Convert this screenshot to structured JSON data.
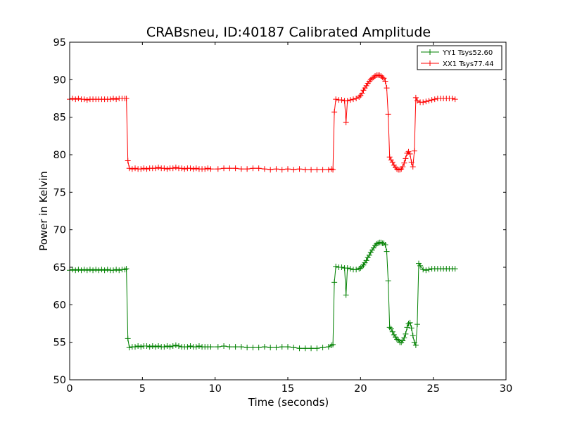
{
  "chart_data": {
    "type": "line",
    "title": "CRABsneu, ID:40187 Calibrated Amplitude",
    "xlabel": "Time (seconds)",
    "ylabel": "Power in Kelvin",
    "xlim": [
      0,
      30
    ],
    "ylim": [
      50,
      95
    ],
    "xticks": [
      0,
      5,
      10,
      15,
      20,
      25,
      30
    ],
    "yticks": [
      50,
      55,
      60,
      65,
      70,
      75,
      80,
      85,
      90,
      95
    ],
    "grid": false,
    "legend_position": "top-right",
    "marker": "plus",
    "series": [
      {
        "name": "YY1 Tsys52.60",
        "color": "#008000",
        "points": [
          [
            0.0,
            64.6
          ],
          [
            0.2,
            64.7
          ],
          [
            0.4,
            64.6
          ],
          [
            0.6,
            64.7
          ],
          [
            0.8,
            64.6
          ],
          [
            1.0,
            64.7
          ],
          [
            1.2,
            64.6
          ],
          [
            1.4,
            64.7
          ],
          [
            1.6,
            64.6
          ],
          [
            1.8,
            64.7
          ],
          [
            2.0,
            64.6
          ],
          [
            2.2,
            64.7
          ],
          [
            2.4,
            64.6
          ],
          [
            2.6,
            64.7
          ],
          [
            2.8,
            64.6
          ],
          [
            3.0,
            64.6
          ],
          [
            3.2,
            64.7
          ],
          [
            3.4,
            64.6
          ],
          [
            3.6,
            64.7
          ],
          [
            3.8,
            64.7
          ],
          [
            3.9,
            64.8
          ],
          [
            4.0,
            55.5
          ],
          [
            4.1,
            54.3
          ],
          [
            4.3,
            54.4
          ],
          [
            4.5,
            54.4
          ],
          [
            4.7,
            54.5
          ],
          [
            4.9,
            54.4
          ],
          [
            5.1,
            54.5
          ],
          [
            5.3,
            54.5
          ],
          [
            5.5,
            54.4
          ],
          [
            5.7,
            54.5
          ],
          [
            5.9,
            54.4
          ],
          [
            6.1,
            54.5
          ],
          [
            6.3,
            54.4
          ],
          [
            6.5,
            54.4
          ],
          [
            6.7,
            54.5
          ],
          [
            6.9,
            54.4
          ],
          [
            7.1,
            54.5
          ],
          [
            7.3,
            54.6
          ],
          [
            7.5,
            54.5
          ],
          [
            7.7,
            54.4
          ],
          [
            7.9,
            54.4
          ],
          [
            8.1,
            54.4
          ],
          [
            8.3,
            54.5
          ],
          [
            8.5,
            54.4
          ],
          [
            8.7,
            54.4
          ],
          [
            8.9,
            54.5
          ],
          [
            9.1,
            54.4
          ],
          [
            9.3,
            54.4
          ],
          [
            9.5,
            54.4
          ],
          [
            9.7,
            54.4
          ],
          [
            10.2,
            54.4
          ],
          [
            10.6,
            54.5
          ],
          [
            11.0,
            54.4
          ],
          [
            11.4,
            54.4
          ],
          [
            11.8,
            54.4
          ],
          [
            12.2,
            54.3
          ],
          [
            12.6,
            54.3
          ],
          [
            13.0,
            54.3
          ],
          [
            13.4,
            54.4
          ],
          [
            13.8,
            54.3
          ],
          [
            14.2,
            54.3
          ],
          [
            14.6,
            54.4
          ],
          [
            15.0,
            54.4
          ],
          [
            15.4,
            54.3
          ],
          [
            15.8,
            54.2
          ],
          [
            16.2,
            54.2
          ],
          [
            16.6,
            54.2
          ],
          [
            17.0,
            54.2
          ],
          [
            17.4,
            54.3
          ],
          [
            17.8,
            54.4
          ],
          [
            18.0,
            54.6
          ],
          [
            18.1,
            54.7
          ],
          [
            18.2,
            63.0
          ],
          [
            18.3,
            65.1
          ],
          [
            18.5,
            65.0
          ],
          [
            18.7,
            65.0
          ],
          [
            18.9,
            64.9
          ],
          [
            19.0,
            61.3
          ],
          [
            19.1,
            64.9
          ],
          [
            19.3,
            64.8
          ],
          [
            19.5,
            64.7
          ],
          [
            19.7,
            64.7
          ],
          [
            19.9,
            64.8
          ],
          [
            20.0,
            64.9
          ],
          [
            20.1,
            65.1
          ],
          [
            20.2,
            65.3
          ],
          [
            20.3,
            65.6
          ],
          [
            20.4,
            65.9
          ],
          [
            20.5,
            66.3
          ],
          [
            20.6,
            66.6
          ],
          [
            20.7,
            67.0
          ],
          [
            20.8,
            67.3
          ],
          [
            20.9,
            67.6
          ],
          [
            21.0,
            67.9
          ],
          [
            21.1,
            68.1
          ],
          [
            21.2,
            68.2
          ],
          [
            21.3,
            68.3
          ],
          [
            21.4,
            68.3
          ],
          [
            21.5,
            68.2
          ],
          [
            21.6,
            68.2
          ],
          [
            21.7,
            68.0
          ],
          [
            21.8,
            67.1
          ],
          [
            21.9,
            63.2
          ],
          [
            22.0,
            57.0
          ],
          [
            22.1,
            56.8
          ],
          [
            22.2,
            56.4
          ],
          [
            22.3,
            56.0
          ],
          [
            22.4,
            55.7
          ],
          [
            22.5,
            55.4
          ],
          [
            22.6,
            55.3
          ],
          [
            22.7,
            55.0
          ],
          [
            22.8,
            55.0
          ],
          [
            22.9,
            55.2
          ],
          [
            23.0,
            55.6
          ],
          [
            23.1,
            56.1
          ],
          [
            23.2,
            57.0
          ],
          [
            23.3,
            57.5
          ],
          [
            23.4,
            57.6
          ],
          [
            23.5,
            56.9
          ],
          [
            23.6,
            55.9
          ],
          [
            23.7,
            55.0
          ],
          [
            23.8,
            54.6
          ],
          [
            23.9,
            57.4
          ],
          [
            24.0,
            65.5
          ],
          [
            24.1,
            65.2
          ],
          [
            24.3,
            64.7
          ],
          [
            24.5,
            64.6
          ],
          [
            24.7,
            64.7
          ],
          [
            24.9,
            64.8
          ],
          [
            25.1,
            64.8
          ],
          [
            25.3,
            64.8
          ],
          [
            25.5,
            64.8
          ],
          [
            25.7,
            64.8
          ],
          [
            25.9,
            64.8
          ],
          [
            26.1,
            64.8
          ],
          [
            26.3,
            64.8
          ],
          [
            26.5,
            64.8
          ]
        ]
      },
      {
        "name": "XX1 Tsys77.44",
        "color": "#ff0000",
        "points": [
          [
            0.0,
            87.4
          ],
          [
            0.2,
            87.5
          ],
          [
            0.4,
            87.4
          ],
          [
            0.6,
            87.5
          ],
          [
            0.8,
            87.4
          ],
          [
            1.0,
            87.4
          ],
          [
            1.2,
            87.3
          ],
          [
            1.4,
            87.4
          ],
          [
            1.6,
            87.4
          ],
          [
            1.8,
            87.4
          ],
          [
            2.0,
            87.4
          ],
          [
            2.2,
            87.4
          ],
          [
            2.4,
            87.4
          ],
          [
            2.6,
            87.4
          ],
          [
            2.8,
            87.4
          ],
          [
            3.0,
            87.5
          ],
          [
            3.2,
            87.4
          ],
          [
            3.4,
            87.5
          ],
          [
            3.6,
            87.5
          ],
          [
            3.8,
            87.5
          ],
          [
            3.9,
            87.5
          ],
          [
            4.0,
            79.2
          ],
          [
            4.1,
            78.2
          ],
          [
            4.3,
            78.1
          ],
          [
            4.5,
            78.2
          ],
          [
            4.7,
            78.1
          ],
          [
            4.9,
            78.1
          ],
          [
            5.1,
            78.2
          ],
          [
            5.3,
            78.1
          ],
          [
            5.5,
            78.2
          ],
          [
            5.7,
            78.2
          ],
          [
            5.9,
            78.2
          ],
          [
            6.1,
            78.3
          ],
          [
            6.3,
            78.2
          ],
          [
            6.5,
            78.2
          ],
          [
            6.7,
            78.1
          ],
          [
            6.9,
            78.2
          ],
          [
            7.1,
            78.2
          ],
          [
            7.3,
            78.3
          ],
          [
            7.5,
            78.2
          ],
          [
            7.7,
            78.2
          ],
          [
            7.9,
            78.1
          ],
          [
            8.1,
            78.2
          ],
          [
            8.3,
            78.2
          ],
          [
            8.5,
            78.1
          ],
          [
            8.7,
            78.2
          ],
          [
            8.9,
            78.1
          ],
          [
            9.1,
            78.1
          ],
          [
            9.3,
            78.1
          ],
          [
            9.5,
            78.2
          ],
          [
            9.7,
            78.1
          ],
          [
            10.2,
            78.1
          ],
          [
            10.6,
            78.2
          ],
          [
            11.0,
            78.2
          ],
          [
            11.4,
            78.2
          ],
          [
            11.8,
            78.1
          ],
          [
            12.2,
            78.1
          ],
          [
            12.6,
            78.2
          ],
          [
            13.0,
            78.2
          ],
          [
            13.4,
            78.1
          ],
          [
            13.8,
            78.0
          ],
          [
            14.2,
            78.1
          ],
          [
            14.6,
            78.0
          ],
          [
            15.0,
            78.1
          ],
          [
            15.4,
            78.0
          ],
          [
            15.8,
            78.1
          ],
          [
            16.2,
            78.0
          ],
          [
            16.6,
            78.0
          ],
          [
            17.0,
            78.0
          ],
          [
            17.4,
            78.0
          ],
          [
            17.8,
            78.0
          ],
          [
            18.0,
            78.1
          ],
          [
            18.1,
            78.0
          ],
          [
            18.2,
            85.7
          ],
          [
            18.3,
            87.4
          ],
          [
            18.5,
            87.3
          ],
          [
            18.7,
            87.3
          ],
          [
            18.9,
            87.2
          ],
          [
            19.0,
            84.3
          ],
          [
            19.1,
            87.2
          ],
          [
            19.3,
            87.3
          ],
          [
            19.5,
            87.4
          ],
          [
            19.7,
            87.5
          ],
          [
            19.9,
            87.7
          ],
          [
            20.0,
            87.9
          ],
          [
            20.1,
            88.2
          ],
          [
            20.2,
            88.6
          ],
          [
            20.3,
            88.9
          ],
          [
            20.4,
            89.2
          ],
          [
            20.5,
            89.5
          ],
          [
            20.6,
            89.8
          ],
          [
            20.7,
            90.0
          ],
          [
            20.8,
            90.2
          ],
          [
            20.9,
            90.3
          ],
          [
            21.0,
            90.5
          ],
          [
            21.1,
            90.6
          ],
          [
            21.2,
            90.6
          ],
          [
            21.3,
            90.6
          ],
          [
            21.4,
            90.5
          ],
          [
            21.5,
            90.3
          ],
          [
            21.6,
            90.2
          ],
          [
            21.7,
            89.8
          ],
          [
            21.8,
            88.9
          ],
          [
            21.9,
            85.4
          ],
          [
            22.0,
            79.7
          ],
          [
            22.1,
            79.3
          ],
          [
            22.2,
            79.0
          ],
          [
            22.3,
            78.6
          ],
          [
            22.4,
            78.3
          ],
          [
            22.5,
            78.1
          ],
          [
            22.6,
            78.0
          ],
          [
            22.7,
            78.0
          ],
          [
            22.8,
            78.1
          ],
          [
            22.9,
            78.4
          ],
          [
            23.0,
            78.9
          ],
          [
            23.1,
            79.5
          ],
          [
            23.2,
            80.2
          ],
          [
            23.3,
            80.4
          ],
          [
            23.4,
            80.1
          ],
          [
            23.5,
            79.0
          ],
          [
            23.6,
            78.4
          ],
          [
            23.7,
            80.5
          ],
          [
            23.8,
            87.6
          ],
          [
            23.9,
            87.2
          ],
          [
            24.1,
            87.0
          ],
          [
            24.3,
            87.0
          ],
          [
            24.5,
            87.1
          ],
          [
            24.7,
            87.2
          ],
          [
            24.9,
            87.3
          ],
          [
            25.1,
            87.4
          ],
          [
            25.3,
            87.5
          ],
          [
            25.5,
            87.5
          ],
          [
            25.7,
            87.5
          ],
          [
            25.9,
            87.5
          ],
          [
            26.1,
            87.5
          ],
          [
            26.3,
            87.5
          ],
          [
            26.5,
            87.4
          ]
        ]
      }
    ]
  }
}
